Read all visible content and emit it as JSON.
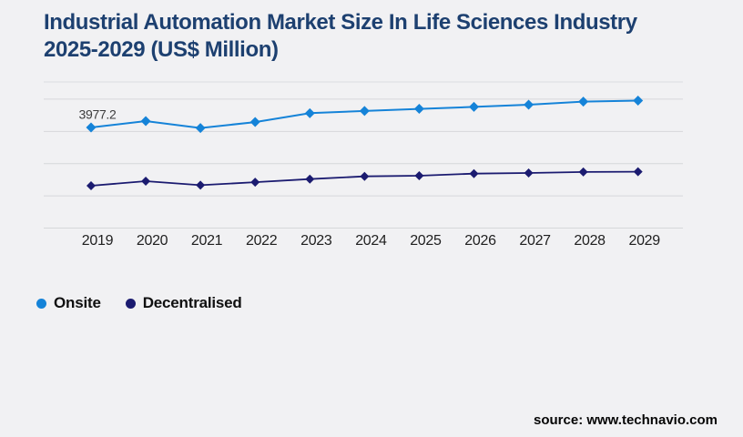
{
  "title": {
    "line1": "Industrial Automation Market Size In Life Sciences Industry",
    "line2": "2025-2029 (US$ Million)"
  },
  "source": "source: www.technavio.com",
  "legend": {
    "items": [
      {
        "label": "Onsite",
        "color": "#1583d8"
      },
      {
        "label": "Decentralised",
        "color": "#1b1b70"
      }
    ]
  },
  "colors": {
    "background": "#f1f1f3",
    "title": "#1d4070",
    "onsite": "#1583d8",
    "decentralised": "#1b1b70"
  },
  "chart_data": {
    "type": "line",
    "title": "Industrial Automation Market Size In Life Sciences Industry 2025-2029 (US$ Million)",
    "categories": [
      "2019",
      "2020",
      "2021",
      "2022",
      "2023",
      "2024",
      "2025",
      "2026",
      "2027",
      "2028",
      "2029"
    ],
    "series": [
      {
        "name": "Onsite",
        "color": "#1583d8",
        "marker": "diamond",
        "values": [
          3977.2,
          4175,
          3960,
          4145,
          4420,
          4490,
          4555,
          4615,
          4685,
          4780,
          4810
        ]
      },
      {
        "name": "Decentralised",
        "color": "#1b1b70",
        "marker": "diamond",
        "values": [
          2170,
          2310,
          2185,
          2280,
          2375,
          2460,
          2480,
          2545,
          2565,
          2595,
          2605
        ]
      }
    ],
    "data_labels": [
      {
        "series": "Onsite",
        "category": "2019",
        "text": "3977.2"
      }
    ],
    "ylim": [
      855,
      5390
    ],
    "y_gridline_step": 1000,
    "y_gridline_count": 5,
    "y_axis_labels_visible": false,
    "grid": "horizontal",
    "legend_position": "bottom-left",
    "xlabel": "",
    "ylabel": ""
  }
}
